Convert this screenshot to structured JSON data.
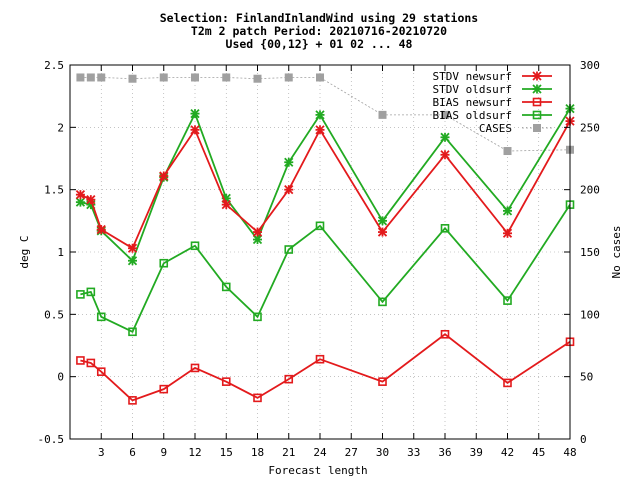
{
  "chart_data": {
    "type": "line",
    "title_lines": [
      "Selection: FinlandInlandWind using    29 stations",
      "T2m 2 patch   Period: 20210716-20210720",
      "Used {00,12} + 01 02 ... 48"
    ],
    "xlabel": "Forecast length",
    "ylabel": "deg C",
    "y2label": "No cases",
    "xlim": [
      0,
      48
    ],
    "ylim": [
      -0.5,
      2.5
    ],
    "y2lim": [
      0,
      300
    ],
    "xticks": [
      3,
      6,
      9,
      12,
      15,
      18,
      21,
      24,
      27,
      30,
      33,
      36,
      39,
      42,
      45,
      48
    ],
    "yticks": [
      -0.5,
      0,
      0.5,
      1,
      1.5,
      2,
      2.5
    ],
    "yticklabels": [
      "-0.5",
      "0",
      "0.5",
      "1",
      "1.5",
      "2",
      "2.5"
    ],
    "y2ticks": [
      0,
      50,
      100,
      150,
      200,
      250,
      300
    ],
    "grid": true,
    "legend_position": "top-right",
    "x": [
      1,
      2,
      3,
      6,
      9,
      12,
      15,
      18,
      21,
      24,
      30,
      36,
      42,
      48
    ],
    "series": [
      {
        "name": "STDV newsurf",
        "axis": "y",
        "color": "#e31a1c",
        "marker": "star",
        "line": true,
        "values": [
          1.46,
          1.42,
          1.18,
          1.03,
          1.61,
          1.98,
          1.38,
          1.16,
          1.5,
          1.98,
          1.16,
          1.78,
          1.15,
          2.05
        ]
      },
      {
        "name": "STDV oldsurf",
        "axis": "y",
        "color": "#22aa22",
        "marker": "star",
        "line": true,
        "values": [
          1.4,
          1.38,
          1.17,
          0.93,
          1.6,
          2.11,
          1.43,
          1.1,
          1.72,
          2.1,
          1.25,
          1.92,
          1.33,
          2.15
        ]
      },
      {
        "name": "BIAS newsurf",
        "axis": "y",
        "color": "#e31a1c",
        "marker": "square",
        "line": true,
        "values": [
          0.13,
          0.11,
          0.04,
          -0.19,
          -0.1,
          0.07,
          -0.04,
          -0.17,
          -0.02,
          0.14,
          -0.04,
          0.34,
          -0.05,
          0.28
        ]
      },
      {
        "name": "BIAS oldsurf",
        "axis": "y",
        "color": "#22aa22",
        "marker": "square",
        "line": true,
        "values": [
          0.66,
          0.68,
          0.48,
          0.36,
          0.91,
          1.05,
          0.72,
          0.48,
          1.02,
          1.21,
          0.6,
          1.19,
          0.61,
          1.38
        ]
      },
      {
        "name": "CASES",
        "axis": "y2",
        "color": "#a0a0a0",
        "marker": "filled-square",
        "line": "dotted",
        "values": [
          290,
          290,
          290,
          289,
          290,
          290,
          290,
          289,
          290,
          290,
          260,
          260,
          231,
          232
        ]
      }
    ]
  }
}
